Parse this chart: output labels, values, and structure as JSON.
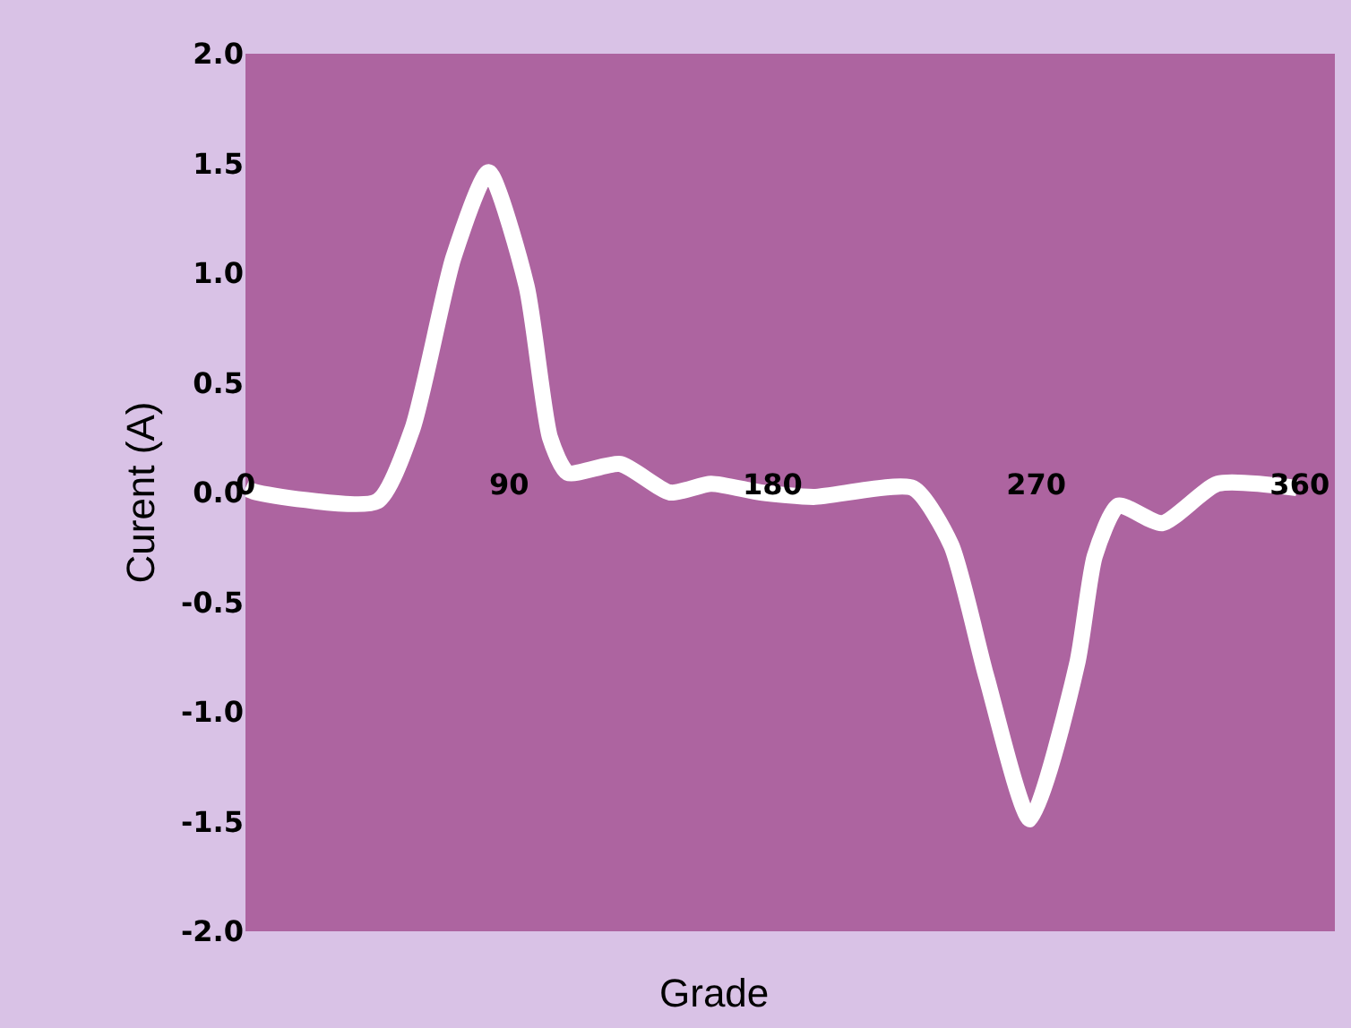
{
  "chart_data": {
    "type": "line",
    "xlabel": "Grade",
    "ylabel": "Curent (A)",
    "x": [
      0,
      4,
      45,
      57,
      71,
      83,
      96,
      104,
      110,
      128,
      145,
      159,
      176,
      194,
      228,
      241,
      253,
      268,
      284,
      290,
      298,
      313,
      332,
      359
    ],
    "series": [
      {
        "color": "#ffffff",
        "values": [
          0.02,
          0.0,
          -0.04,
          0.29,
          1.07,
          1.46,
          0.94,
          0.25,
          0.09,
          0.13,
          0.0,
          0.04,
          0.0,
          -0.02,
          0.02,
          -0.24,
          -0.84,
          -1.49,
          -0.78,
          -0.29,
          -0.06,
          -0.14,
          0.04,
          0.02
        ]
      }
    ],
    "xlim": [
      0,
      372
    ],
    "xticks": [
      0,
      90,
      180,
      270,
      360
    ],
    "ylim": [
      -2.0,
      2.0
    ],
    "yticks": [
      {
        "value": 2,
        "label": "2.0"
      },
      {
        "value": 1.5,
        "label": "1.5"
      },
      {
        "value": 1,
        "label": "1.0"
      },
      {
        "value": 0.5,
        "label": "0.5"
      },
      {
        "value": 0,
        "label": "0.0"
      },
      {
        "value": -0.5,
        "label": "-0.5"
      },
      {
        "value": -1,
        "label": "-1.0"
      },
      {
        "value": -1.5,
        "label": "-1.5"
      },
      {
        "value": -2,
        "label": "-2.0"
      }
    ],
    "grid": false,
    "marker": "none",
    "line_style": "solid"
  }
}
